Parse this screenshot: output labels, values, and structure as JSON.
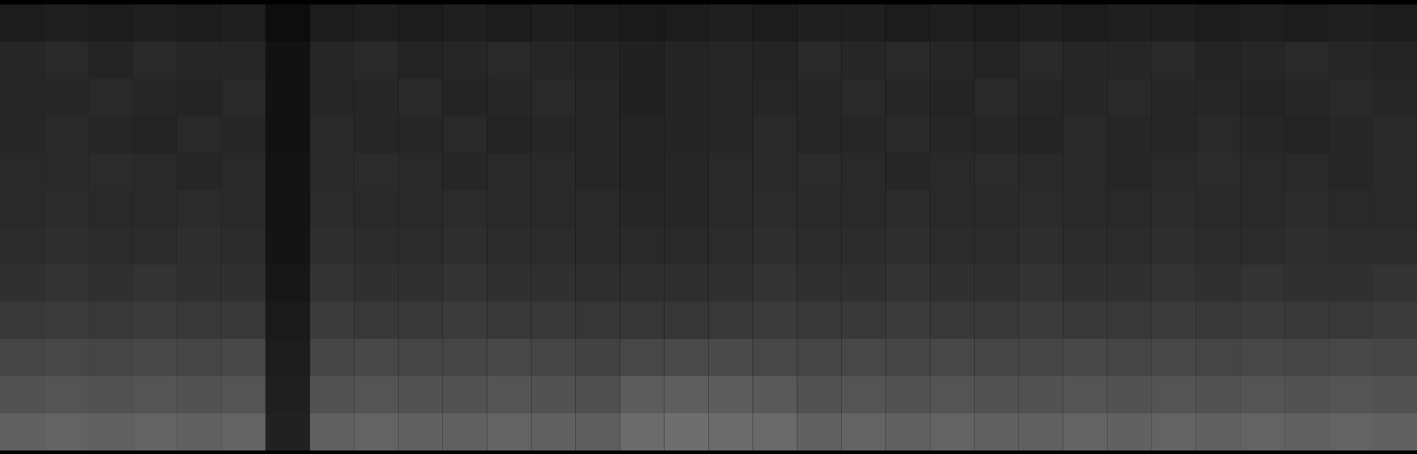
{
  "chart_data": {
    "type": "heatmap",
    "tick_labels": false,
    "zlim": [
      0,
      1
    ],
    "z": [
      [
        0.11,
        0.12,
        0.11,
        0.12,
        0.11,
        0.12,
        0.05,
        0.11,
        0.12,
        0.11,
        0.12,
        0.11,
        0.12,
        0.11,
        0.1,
        0.11,
        0.12,
        0.11,
        0.12,
        0.12,
        0.11,
        0.12,
        0.11,
        0.12,
        0.11,
        0.12,
        0.12,
        0.11,
        0.12,
        0.11,
        0.12,
        0.11
      ],
      [
        0.15,
        0.16,
        0.14,
        0.16,
        0.15,
        0.15,
        0.07,
        0.15,
        0.16,
        0.14,
        0.15,
        0.16,
        0.15,
        0.14,
        0.13,
        0.14,
        0.15,
        0.14,
        0.16,
        0.15,
        0.16,
        0.15,
        0.14,
        0.16,
        0.15,
        0.15,
        0.16,
        0.14,
        0.15,
        0.16,
        0.15,
        0.14
      ],
      [
        0.15,
        0.15,
        0.16,
        0.15,
        0.14,
        0.16,
        0.07,
        0.15,
        0.15,
        0.16,
        0.14,
        0.15,
        0.16,
        0.15,
        0.13,
        0.14,
        0.15,
        0.15,
        0.15,
        0.16,
        0.15,
        0.14,
        0.16,
        0.15,
        0.15,
        0.16,
        0.15,
        0.15,
        0.14,
        0.15,
        0.16,
        0.15
      ],
      [
        0.15,
        0.16,
        0.15,
        0.14,
        0.16,
        0.15,
        0.07,
        0.16,
        0.15,
        0.15,
        0.16,
        0.14,
        0.15,
        0.15,
        0.14,
        0.14,
        0.15,
        0.16,
        0.15,
        0.15,
        0.16,
        0.15,
        0.15,
        0.14,
        0.16,
        0.15,
        0.15,
        0.16,
        0.15,
        0.14,
        0.15,
        0.16
      ],
      [
        0.16,
        0.16,
        0.17,
        0.16,
        0.15,
        0.16,
        0.08,
        0.16,
        0.17,
        0.16,
        0.15,
        0.16,
        0.16,
        0.15,
        0.14,
        0.15,
        0.16,
        0.16,
        0.17,
        0.16,
        0.15,
        0.16,
        0.17,
        0.16,
        0.16,
        0.15,
        0.16,
        0.17,
        0.16,
        0.16,
        0.15,
        0.16
      ],
      [
        0.16,
        0.17,
        0.16,
        0.16,
        0.17,
        0.16,
        0.08,
        0.17,
        0.16,
        0.16,
        0.17,
        0.16,
        0.16,
        0.16,
        0.15,
        0.15,
        0.16,
        0.17,
        0.16,
        0.16,
        0.17,
        0.16,
        0.16,
        0.17,
        0.16,
        0.16,
        0.17,
        0.16,
        0.16,
        0.17,
        0.16,
        0.16
      ],
      [
        0.17,
        0.18,
        0.17,
        0.17,
        0.18,
        0.17,
        0.08,
        0.18,
        0.17,
        0.17,
        0.18,
        0.17,
        0.17,
        0.16,
        0.16,
        0.16,
        0.17,
        0.18,
        0.17,
        0.17,
        0.18,
        0.17,
        0.17,
        0.18,
        0.17,
        0.17,
        0.18,
        0.17,
        0.17,
        0.18,
        0.17,
        0.17
      ],
      [
        0.19,
        0.2,
        0.19,
        0.2,
        0.19,
        0.19,
        0.09,
        0.2,
        0.19,
        0.19,
        0.2,
        0.19,
        0.19,
        0.18,
        0.18,
        0.18,
        0.19,
        0.2,
        0.19,
        0.19,
        0.2,
        0.19,
        0.19,
        0.2,
        0.19,
        0.19,
        0.2,
        0.19,
        0.2,
        0.19,
        0.19,
        0.2
      ],
      [
        0.22,
        0.23,
        0.22,
        0.23,
        0.22,
        0.22,
        0.1,
        0.23,
        0.22,
        0.22,
        0.23,
        0.22,
        0.22,
        0.21,
        0.21,
        0.21,
        0.22,
        0.23,
        0.22,
        0.22,
        0.23,
        0.22,
        0.22,
        0.23,
        0.22,
        0.22,
        0.23,
        0.22,
        0.23,
        0.22,
        0.22,
        0.23
      ],
      [
        0.27,
        0.28,
        0.27,
        0.28,
        0.27,
        0.28,
        0.11,
        0.27,
        0.28,
        0.27,
        0.27,
        0.28,
        0.27,
        0.26,
        0.28,
        0.29,
        0.29,
        0.28,
        0.27,
        0.28,
        0.27,
        0.28,
        0.27,
        0.27,
        0.28,
        0.27,
        0.28,
        0.27,
        0.28,
        0.27,
        0.28,
        0.27
      ],
      [
        0.32,
        0.33,
        0.32,
        0.33,
        0.32,
        0.33,
        0.12,
        0.32,
        0.33,
        0.32,
        0.32,
        0.33,
        0.32,
        0.31,
        0.36,
        0.37,
        0.36,
        0.35,
        0.32,
        0.33,
        0.32,
        0.33,
        0.32,
        0.32,
        0.33,
        0.32,
        0.33,
        0.32,
        0.33,
        0.32,
        0.33,
        0.32
      ],
      [
        0.38,
        0.39,
        0.38,
        0.39,
        0.38,
        0.39,
        0.13,
        0.38,
        0.39,
        0.38,
        0.38,
        0.39,
        0.38,
        0.37,
        0.42,
        0.43,
        0.42,
        0.41,
        0.38,
        0.39,
        0.38,
        0.39,
        0.38,
        0.38,
        0.39,
        0.38,
        0.39,
        0.38,
        0.39,
        0.38,
        0.39,
        0.38
      ]
    ]
  }
}
